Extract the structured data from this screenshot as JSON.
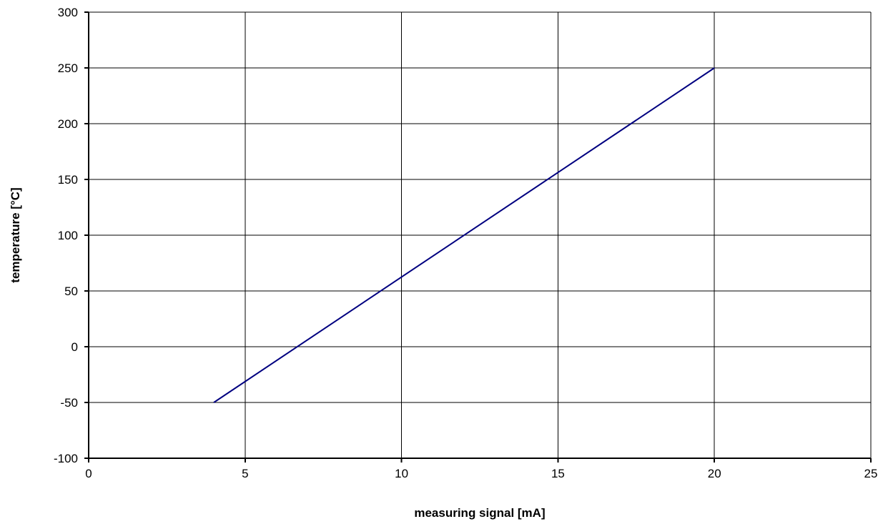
{
  "chart_data": {
    "type": "line",
    "title": "",
    "xlabel": "measuring signal [mA]",
    "ylabel": "temperature [°C]",
    "xlim": [
      0,
      25
    ],
    "ylim": [
      -100,
      300
    ],
    "xticks": [
      0,
      5,
      10,
      15,
      20,
      25
    ],
    "yticks": [
      -100,
      -50,
      0,
      50,
      100,
      150,
      200,
      250,
      300
    ],
    "xtick_labels": [
      "0",
      "5",
      "10",
      "15",
      "20",
      "25"
    ],
    "ytick_labels": [
      "-100",
      "-50",
      "0",
      "50",
      "100",
      "150",
      "200",
      "250",
      "300"
    ],
    "grid": true,
    "legend": "none",
    "series": [
      {
        "x": [
          4,
          20
        ],
        "y": [
          -50,
          250
        ],
        "color": "#000080"
      }
    ]
  }
}
